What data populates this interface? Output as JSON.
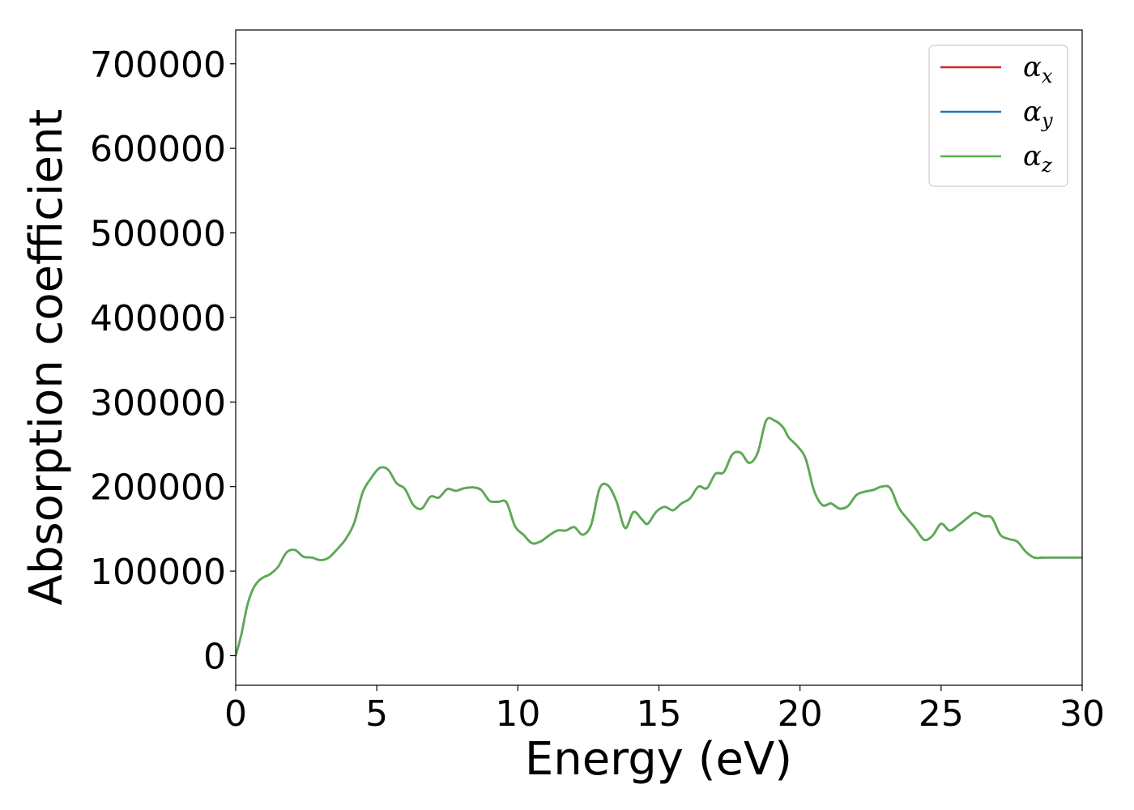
{
  "chart_data": {
    "type": "line",
    "title": "",
    "xlabel": "Energy (eV)",
    "ylabel": "Absorption coefficient",
    "xlim": [
      0,
      30
    ],
    "ylim": [
      -35000,
      740000
    ],
    "xticks": [
      0,
      5,
      10,
      15,
      20,
      25,
      30
    ],
    "xtick_labels": [
      "0",
      "5",
      "10",
      "15",
      "20",
      "25",
      "30"
    ],
    "yticks": [
      0,
      100000,
      200000,
      300000,
      400000,
      500000,
      600000,
      700000
    ],
    "ytick_labels": [
      "0",
      "100000",
      "200000",
      "300000",
      "400000",
      "500000",
      "600000",
      "700000"
    ],
    "grid": false,
    "legend_position": "top-right",
    "x": [
      0,
      0.2,
      0.4,
      0.6,
      0.8,
      1.0,
      1.2,
      1.5,
      1.8,
      2.1,
      2.4,
      2.7,
      3.0,
      3.3,
      3.6,
      3.9,
      4.2,
      4.5,
      4.8,
      5.1,
      5.4,
      5.7,
      6.0,
      6.3,
      6.6,
      6.9,
      7.2,
      7.5,
      7.8,
      8.1,
      8.4,
      8.7,
      9.0,
      9.3,
      9.6,
      9.9,
      10.2,
      10.5,
      10.8,
      11.1,
      11.4,
      11.7,
      12.0,
      12.3,
      12.6,
      12.9,
      13.2,
      13.5,
      13.8,
      14.1,
      14.4,
      14.6,
      14.9,
      15.2,
      15.5,
      15.8,
      16.1,
      16.4,
      16.7,
      17.0,
      17.3,
      17.6,
      17.9,
      18.2,
      18.5,
      18.8,
      19.1,
      19.4,
      19.6,
      19.9,
      20.2,
      20.5,
      20.8,
      21.1,
      21.4,
      21.7,
      22.0,
      22.3,
      22.6,
      22.9,
      23.2,
      23.5,
      23.8,
      24.1,
      24.4,
      24.7,
      25.0,
      25.3,
      25.6,
      25.9,
      26.2,
      26.5,
      26.8,
      27.1,
      27.4,
      27.7,
      28.0,
      28.3,
      28.6,
      28.9,
      29.2,
      29.5,
      29.8,
      30.0
    ],
    "series": [
      {
        "name": "αx",
        "color": "#d62728",
        "values": [
          0,
          25000,
          58000,
          78000,
          88000,
          93000,
          96000,
          105000,
          122000,
          125000,
          117000,
          116000,
          113000,
          116000,
          126000,
          138000,
          157000,
          193000,
          210000,
          222000,
          220000,
          204000,
          197000,
          178000,
          174000,
          188000,
          187000,
          197000,
          195000,
          198000,
          199000,
          196000,
          183000,
          182000,
          181000,
          153000,
          143000,
          133000,
          135000,
          142000,
          148000,
          148000,
          152000,
          143000,
          155000,
          198000,
          201000,
          182000,
          151000,
          170000,
          161000,
          156000,
          170000,
          176000,
          172000,
          180000,
          186000,
          200000,
          198000,
          215000,
          217000,
          238000,
          240000,
          228000,
          240000,
          278000,
          278000,
          270000,
          258000,
          248000,
          233000,
          195000,
          178000,
          180000,
          174000,
          177000,
          190000,
          194000,
          196000,
          200000,
          198000,
          175000,
          162000,
          150000,
          137000,
          142000,
          156000,
          148000,
          154000,
          162000,
          169000,
          165000,
          163000,
          143000,
          138000,
          135000,
          123000,
          116000,
          116000,
          116000,
          116000,
          116000,
          116000,
          116000
        ]
      },
      {
        "name": "αy",
        "color": "#1f77b4",
        "values": [
          0,
          25000,
          58000,
          78000,
          88000,
          93000,
          96000,
          105000,
          122000,
          125000,
          117000,
          116000,
          113000,
          116000,
          126000,
          138000,
          157000,
          193000,
          210000,
          222000,
          220000,
          204000,
          197000,
          178000,
          174000,
          188000,
          187000,
          197000,
          195000,
          198000,
          199000,
          196000,
          183000,
          182000,
          181000,
          153000,
          143000,
          133000,
          135000,
          142000,
          148000,
          148000,
          152000,
          143000,
          155000,
          198000,
          201000,
          182000,
          151000,
          170000,
          161000,
          156000,
          170000,
          176000,
          172000,
          180000,
          186000,
          200000,
          198000,
          215000,
          217000,
          238000,
          240000,
          228000,
          240000,
          278000,
          278000,
          270000,
          258000,
          248000,
          233000,
          195000,
          178000,
          180000,
          174000,
          177000,
          190000,
          194000,
          196000,
          200000,
          198000,
          175000,
          162000,
          150000,
          137000,
          142000,
          156000,
          148000,
          154000,
          162000,
          169000,
          165000,
          163000,
          143000,
          138000,
          135000,
          123000,
          116000,
          116000,
          116000,
          116000,
          116000,
          116000,
          116000
        ]
      },
      {
        "name": "αz",
        "color": "#5aad4e",
        "values": [
          0,
          25000,
          58000,
          78000,
          88000,
          93000,
          96000,
          105000,
          122000,
          125000,
          117000,
          116000,
          113000,
          116000,
          126000,
          138000,
          157000,
          193000,
          210000,
          222000,
          220000,
          204000,
          197000,
          178000,
          174000,
          188000,
          187000,
          197000,
          195000,
          198000,
          199000,
          196000,
          183000,
          182000,
          181000,
          153000,
          143000,
          133000,
          135000,
          142000,
          148000,
          148000,
          152000,
          143000,
          155000,
          198000,
          201000,
          182000,
          151000,
          170000,
          161000,
          156000,
          170000,
          176000,
          172000,
          180000,
          186000,
          200000,
          198000,
          215000,
          217000,
          238000,
          240000,
          228000,
          240000,
          278000,
          278000,
          270000,
          258000,
          248000,
          233000,
          195000,
          178000,
          180000,
          174000,
          177000,
          190000,
          194000,
          196000,
          200000,
          198000,
          175000,
          162000,
          150000,
          137000,
          142000,
          156000,
          148000,
          154000,
          162000,
          169000,
          165000,
          163000,
          143000,
          138000,
          135000,
          123000,
          116000,
          116000,
          116000,
          116000,
          116000,
          116000,
          116000
        ]
      }
    ],
    "legend": [
      {
        "symbol": "α",
        "sub": "x",
        "color": "#d62728"
      },
      {
        "symbol": "α",
        "sub": "y",
        "color": "#1f77b4"
      },
      {
        "symbol": "α",
        "sub": "z",
        "color": "#5aad4e"
      }
    ]
  }
}
